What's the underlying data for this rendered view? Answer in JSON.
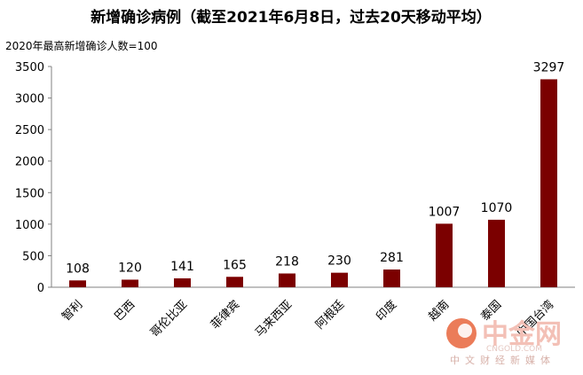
{
  "chart_data": {
    "type": "bar",
    "title": "新增确诊病例（截至2021年6月8日，过去20天移动平均）",
    "subtitle": "2020年最高新增确诊人数=100",
    "categories": [
      "智利",
      "巴西",
      "哥伦比亚",
      "菲律宾",
      "马来西亚",
      "阿根廷",
      "印度",
      "越南",
      "泰国",
      "中国台湾"
    ],
    "values": [
      108,
      120,
      141,
      165,
      218,
      230,
      281,
      1007,
      1070,
      3297
    ],
    "data_labels": [
      "108",
      "120",
      "141",
      "165",
      "218",
      "230",
      "281",
      "1007",
      "1070",
      "3297"
    ],
    "yticks": [
      "0",
      "500",
      "1000",
      "1500",
      "2000",
      "2500",
      "3000",
      "3500"
    ],
    "ylim": [
      0,
      3500
    ],
    "bar_color": "#7b0000",
    "grid": false,
    "xlabel": "",
    "ylabel": ""
  },
  "watermark": {
    "logo_text": "中金网",
    "site_text": "CNGOLD.COM",
    "tagline": "中文财经新媒体",
    "logo_color": "#e8653c"
  }
}
